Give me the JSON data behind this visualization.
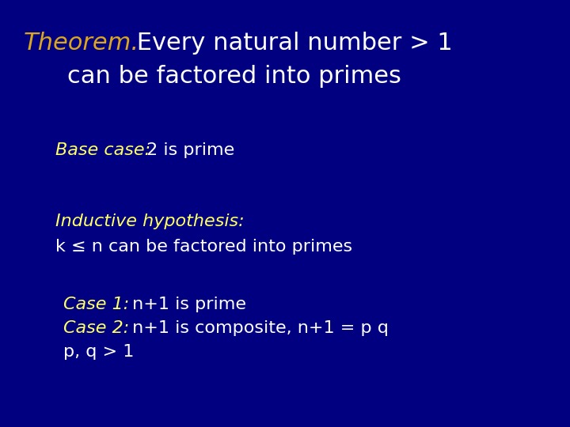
{
  "background_color": "#000080",
  "title_theorem_text": "Theorem.",
  "title_theorem_color": "#DAA520",
  "title_rest_line1": " Every natural number > 1",
  "title_rest_line2": "    can be factored into primes",
  "title_rest_color": "#FFFFFF",
  "title_fontsize": 22,
  "base_case_label": "Base case:",
  "base_case_label_color": "#FFFF66",
  "base_case_rest": " 2 is prime",
  "base_case_rest_color": "#FFFFFF",
  "base_case_fontsize": 16,
  "inductive_label": "Inductive hypothesis:",
  "inductive_label_color": "#FFFF66",
  "inductive_rest": "k ≤ n can be factored into primes",
  "inductive_rest_color": "#FFFFFF",
  "inductive_fontsize": 16,
  "case1_label": "Case 1:",
  "case1_label_color": "#FFFF66",
  "case1_rest": " n+1 is prime",
  "case1_rest_color": "#FFFFFF",
  "case1_fontsize": 16,
  "case2_label": "Case 2:",
  "case2_label_color": "#FFFF66",
  "case2_rest": " n+1 is composite, n+1 = p q",
  "case2_rest_color": "#FFFFFF",
  "case2_fontsize": 16,
  "case3_text": "p, q > 1",
  "case3_color": "#FFFFFF",
  "case3_fontsize": 16,
  "fig_width": 7.2,
  "fig_height": 5.4,
  "dpi": 100
}
